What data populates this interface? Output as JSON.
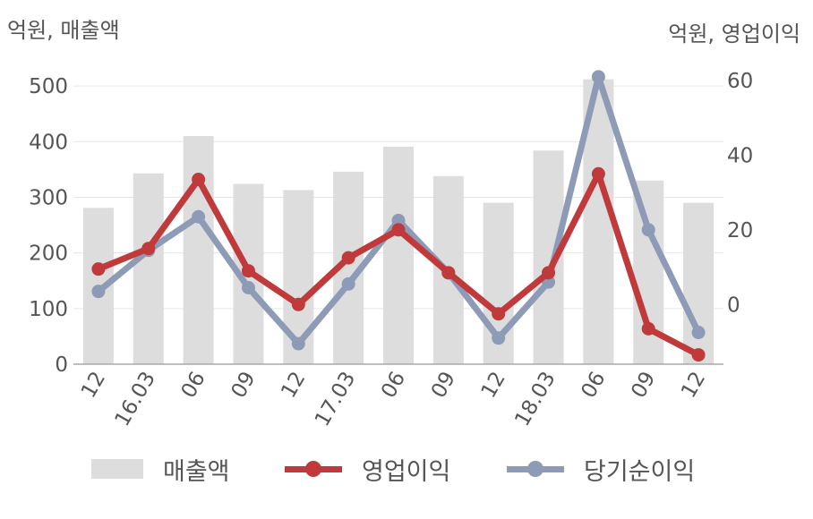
{
  "units": {
    "left": "억원, 매출액",
    "right": "억원, 영업이익"
  },
  "chart_data": {
    "type": "bar",
    "categories": [
      "12",
      "16.03",
      "06",
      "09",
      "12",
      "17.03",
      "06",
      "09",
      "12",
      "18.03",
      "06",
      "09",
      "12"
    ],
    "y_left": {
      "ylim": [
        0,
        550
      ],
      "ticks": [
        "0",
        "100",
        "200",
        "300",
        "400",
        "500"
      ]
    },
    "y_right": {
      "ylim": [
        -16,
        66
      ],
      "ticks": [
        "0",
        "20",
        "40",
        "60"
      ]
    },
    "series": [
      {
        "name": "매출액",
        "kind": "bar",
        "axis": "left",
        "color": "#dddddd",
        "values": [
          281,
          343,
          410,
          324,
          313,
          346,
          391,
          338,
          290,
          384,
          512,
          330,
          290
        ]
      },
      {
        "name": "영업이익",
        "kind": "line",
        "axis": "right",
        "color": "#c0393b",
        "values": [
          9.5,
          15.0,
          33.5,
          9.0,
          0.0,
          12.5,
          20.0,
          8.5,
          -2.5,
          8.5,
          35.0,
          -6.5,
          -13.5
        ]
      },
      {
        "name": "당기순이익",
        "kind": "line",
        "axis": "right",
        "color": "#8e9bb7",
        "values": [
          3.5,
          14.5,
          23.5,
          4.5,
          -10.5,
          5.5,
          22.5,
          8.5,
          -9.0,
          6.0,
          61.0,
          20.0,
          -7.5
        ]
      }
    ],
    "grid": true,
    "legend": "bottom"
  }
}
